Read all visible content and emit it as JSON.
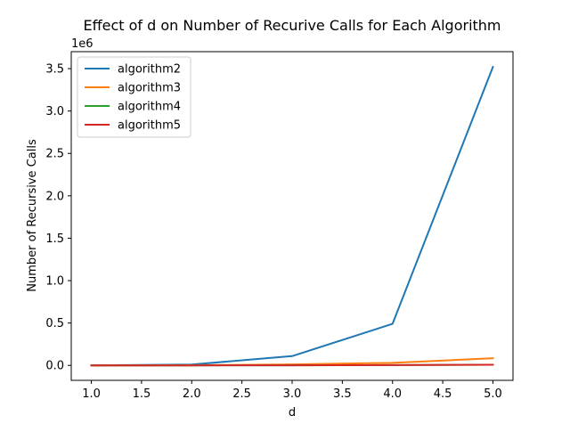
{
  "chart_data": {
    "type": "line",
    "title": "Effect of d on Number of Recurive Calls for Each Algorithm",
    "xlabel": "d",
    "ylabel": "Number of Recursive Calls",
    "y_offset_label": "1e6",
    "x": [
      1,
      2,
      3,
      4,
      5
    ],
    "xlim": [
      0.8,
      5.2
    ],
    "ylim": [
      -176000,
      3700000
    ],
    "x_ticks": [
      "1.0",
      "1.5",
      "2.0",
      "2.5",
      "3.0",
      "3.5",
      "4.0",
      "4.5",
      "5.0"
    ],
    "y_ticks": [
      "0.0",
      "0.5",
      "1.0",
      "1.5",
      "2.0",
      "2.5",
      "3.0",
      "3.5"
    ],
    "grid": false,
    "legend_position": "top-left",
    "series": [
      {
        "name": "algorithm2",
        "color": "#1f77b4",
        "values": [
          1,
          10000,
          110000,
          490000,
          3520000
        ]
      },
      {
        "name": "algorithm3",
        "color": "#ff7f0e",
        "values": [
          1,
          2500,
          12000,
          30000,
          85000
        ]
      },
      {
        "name": "algorithm4",
        "color": "#2ca02c",
        "values": [
          1,
          600,
          1800,
          4000,
          8000
        ]
      },
      {
        "name": "algorithm5",
        "color": "#d62728",
        "values": [
          1,
          600,
          1800,
          4000,
          8000
        ]
      }
    ]
  }
}
